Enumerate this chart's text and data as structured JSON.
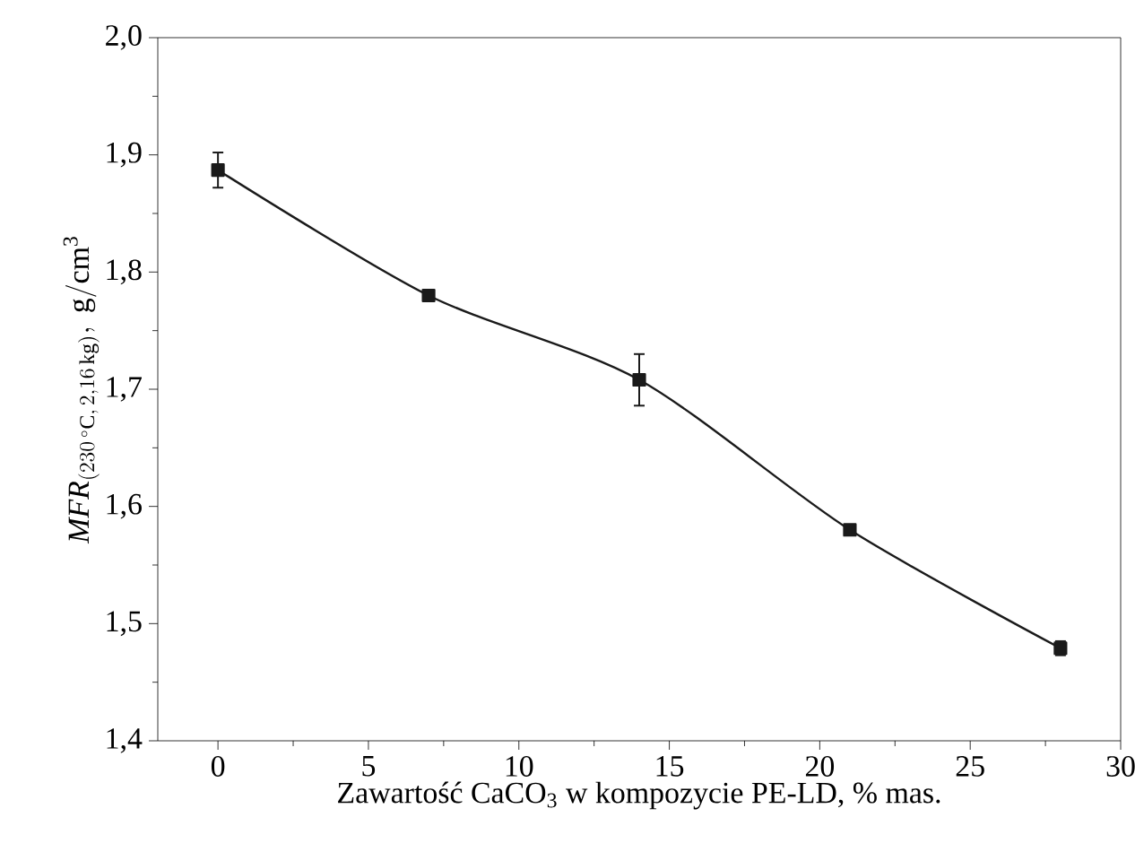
{
  "chart_data": {
    "type": "line",
    "xlabel": "Zawartość CaCO$_{3}$ w kompozycie PE-LD, % mas.",
    "ylabel": "\\mathit{MFR}_{(230\\,^{\\circ}\\mathrm{C},\\,2{,}16\\,\\mathrm{kg})},\\ \\mathrm{g/cm^{3}}",
    "x": [
      0,
      7,
      14,
      21,
      28
    ],
    "series": [
      {
        "color": "#1a1a1a",
        "values": [
          1.887,
          1.78,
          1.708,
          1.58,
          1.479
        ],
        "errors": [
          0.015,
          null,
          0.022,
          null,
          0.006
        ]
      }
    ],
    "marker": "square",
    "line_style": "solid",
    "grid": false,
    "xlim": [
      -2,
      30
    ],
    "xticks": [
      0,
      5,
      10,
      15,
      20,
      25,
      30
    ],
    "ylim": [
      1.4,
      2.0
    ],
    "yticks": [
      {
        "value": 1.4,
        "label": "1,4"
      },
      {
        "value": 1.5,
        "label": "1,5"
      },
      {
        "value": 1.6,
        "label": "1,6"
      },
      {
        "value": 1.7,
        "label": "1,7"
      },
      {
        "value": 1.8,
        "label": "1,8"
      },
      {
        "value": 1.9,
        "label": "1,9"
      },
      {
        "value": 2.0,
        "label": "2,0"
      }
    ]
  }
}
